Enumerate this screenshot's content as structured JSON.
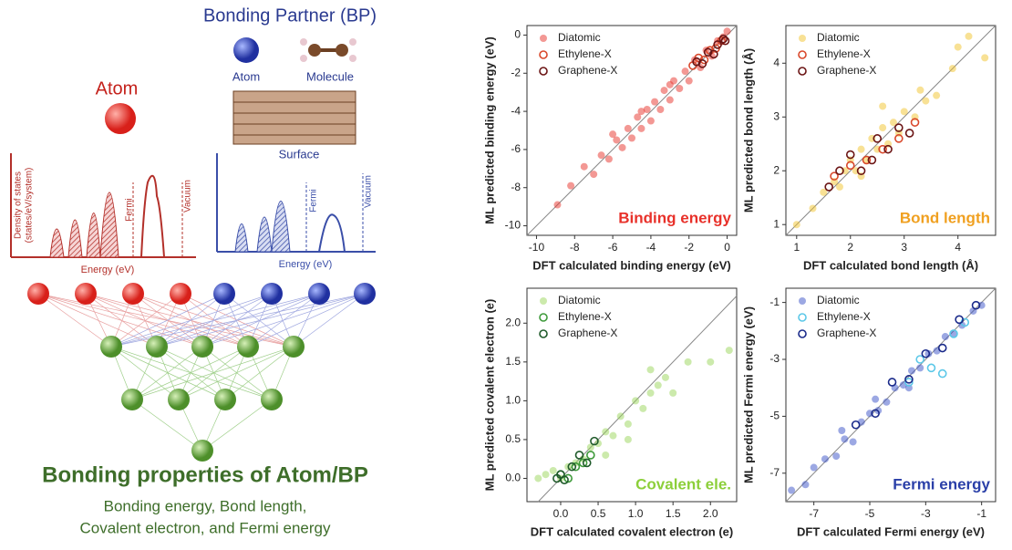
{
  "diagram": {
    "bp_title": "Bonding Partner (BP)",
    "bp_atom": "Atom",
    "bp_molecule": "Molecule",
    "bp_surface": "Surface",
    "atom_title": "Atom",
    "dos_label_1": "Density of states",
    "dos_label_2": "(states/eV/system)",
    "atom_fermi": "Fermi",
    "atom_vacuum": "Vacuum",
    "atom_energy": "Energy (eV)",
    "bp_fermi": "Fermi",
    "bp_vacuum": "Vacuum",
    "bp_energy": "Energy (eV)",
    "output_title": "Bonding properties of Atom/BP",
    "output_line_1": "Bonding energy, Bond length,",
    "output_line_2": "Covalent electron, and Fermi energy"
  },
  "chart_data": [
    {
      "type": "scatter",
      "xlabel": "DFT calculated binding energy (eV)",
      "ylabel": "ML predicted binding energy (eV)",
      "annotation": {
        "text": "Binding energy",
        "color": "#e8312a"
      },
      "xlim": [
        -10.5,
        0.5
      ],
      "ylim": [
        -10.5,
        0.5
      ],
      "xticks": [
        -10,
        -8,
        -6,
        -4,
        -2,
        0
      ],
      "yticks": [
        0,
        -2,
        -4,
        -6,
        -8,
        -10
      ],
      "series": [
        {
          "name": "Diatomic",
          "color": "#e8312a",
          "marker": "filled",
          "x": [
            -8.9,
            -8.2,
            -7.5,
            -7.0,
            -6.6,
            -6.2,
            -5.8,
            -5.5,
            -5.2,
            -5.0,
            -4.7,
            -4.5,
            -4.2,
            -4.0,
            -3.8,
            -3.5,
            -3.3,
            -3.0,
            -2.8,
            -2.5,
            -2.2,
            -2.0,
            -1.7,
            -1.4,
            -1.1,
            -0.8,
            -0.5,
            -0.2,
            0.0,
            -4.5,
            -3.0,
            -6.0
          ],
          "values": [
            -8.9,
            -7.9,
            -6.9,
            -7.3,
            -6.3,
            -6.5,
            -5.5,
            -5.9,
            -4.9,
            -5.4,
            -4.3,
            -4.9,
            -3.9,
            -4.5,
            -3.5,
            -3.9,
            -2.9,
            -3.4,
            -2.4,
            -2.8,
            -1.9,
            -2.4,
            -1.3,
            -1.7,
            -0.8,
            -1.1,
            -0.3,
            -0.1,
            0.2,
            -4.0,
            -2.6,
            -5.2
          ]
        },
        {
          "name": "Ethylene-X",
          "color": "#d9482b",
          "marker": "open",
          "x": [
            -1.8,
            -1.5,
            -1.2,
            -0.9,
            -0.6,
            -0.3
          ],
          "values": [
            -1.6,
            -1.2,
            -1.3,
            -0.8,
            -0.7,
            -0.3
          ]
        },
        {
          "name": "Graphene-X",
          "color": "#6b1414",
          "marker": "open",
          "x": [
            -1.6,
            -1.3,
            -1.0,
            -0.7,
            -0.5,
            -0.2,
            -0.1
          ],
          "values": [
            -1.4,
            -1.5,
            -0.9,
            -1.0,
            -0.5,
            -0.2,
            -0.3
          ]
        }
      ]
    },
    {
      "type": "scatter",
      "xlabel": "DFT calculated bond length (Å)",
      "ylabel": "ML predicted bond length (Å)",
      "annotation": {
        "text": "Bond length",
        "color": "#f0a020"
      },
      "xlim": [
        0.8,
        4.7
      ],
      "ylim": [
        0.8,
        4.7
      ],
      "xticks": [
        1,
        2,
        3,
        4
      ],
      "yticks": [
        1,
        2,
        3,
        4
      ],
      "series": [
        {
          "name": "Diatomic",
          "color": "#f2c42c",
          "marker": "filled",
          "x": [
            1.0,
            1.3,
            1.5,
            1.7,
            1.8,
            1.9,
            2.0,
            2.1,
            2.2,
            2.3,
            2.4,
            2.5,
            2.6,
            2.7,
            2.8,
            2.9,
            3.0,
            3.2,
            3.4,
            3.6,
            3.9,
            4.2,
            4.5,
            2.2,
            2.6,
            3.3,
            4.0
          ],
          "values": [
            1.0,
            1.3,
            1.6,
            1.8,
            1.7,
            2.0,
            2.2,
            2.0,
            2.4,
            2.2,
            2.6,
            2.4,
            2.8,
            2.5,
            2.9,
            2.7,
            3.1,
            3.0,
            3.3,
            3.4,
            3.9,
            4.5,
            4.1,
            1.9,
            3.2,
            3.5,
            4.3
          ]
        },
        {
          "name": "Ethylene-X",
          "color": "#d9482b",
          "marker": "open",
          "x": [
            1.7,
            2.0,
            2.3,
            2.6,
            2.9,
            3.2
          ],
          "values": [
            1.9,
            2.1,
            2.2,
            2.4,
            2.6,
            2.9
          ]
        },
        {
          "name": "Graphene-X",
          "color": "#6b1414",
          "marker": "open",
          "x": [
            1.6,
            1.8,
            2.0,
            2.2,
            2.4,
            2.5,
            2.7,
            2.9,
            3.1
          ],
          "values": [
            1.7,
            2.0,
            2.3,
            2.0,
            2.2,
            2.6,
            2.4,
            2.8,
            2.7
          ]
        }
      ]
    },
    {
      "type": "scatter",
      "xlabel": "DFT calculated covalent electron (e)",
      "ylabel": "ML predicted covalent electron (e)",
      "annotation": {
        "text": "Covalent ele.",
        "color": "#8ccf3a"
      },
      "xlim": [
        -0.45,
        2.35
      ],
      "ylim": [
        -0.3,
        2.45
      ],
      "xticks": [
        {
          "value": 0,
          "label": "0.0"
        },
        0.5,
        {
          "value": 1,
          "label": "1.0"
        },
        1.5,
        {
          "value": 2,
          "label": "2.0"
        }
      ],
      "yticks": [
        {
          "value": 0,
          "label": "0.0"
        },
        0.5,
        {
          "value": 1,
          "label": "1.0"
        },
        1.5,
        {
          "value": 2,
          "label": "2.0"
        }
      ],
      "series": [
        {
          "name": "Diatomic",
          "color": "#9ad65a",
          "marker": "filled",
          "x": [
            -0.3,
            -0.2,
            -0.1,
            0.0,
            0.1,
            0.2,
            0.3,
            0.4,
            0.5,
            0.6,
            0.7,
            0.8,
            0.9,
            1.0,
            1.1,
            1.2,
            1.3,
            1.4,
            1.5,
            1.7,
            2.0,
            2.25,
            0.6,
            0.9,
            1.2
          ],
          "values": [
            0.0,
            0.05,
            0.1,
            0.0,
            0.15,
            0.2,
            0.25,
            0.4,
            0.45,
            0.6,
            0.55,
            0.8,
            0.7,
            1.0,
            0.9,
            1.1,
            1.2,
            1.3,
            1.1,
            1.5,
            1.5,
            1.65,
            0.3,
            0.5,
            1.4
          ]
        },
        {
          "name": "Ethylene-X",
          "color": "#3e9a3a",
          "marker": "open",
          "x": [
            0.0,
            0.1,
            0.2,
            0.3,
            0.4
          ],
          "values": [
            0.05,
            0.0,
            0.15,
            0.2,
            0.3
          ]
        },
        {
          "name": "Graphene-X",
          "color": "#1f5a2a",
          "marker": "open",
          "x": [
            -0.05,
            0.0,
            0.05,
            0.15,
            0.25,
            0.35,
            0.45
          ],
          "values": [
            0.0,
            0.05,
            -0.02,
            0.15,
            0.3,
            0.2,
            0.48
          ]
        }
      ]
    },
    {
      "type": "scatter",
      "xlabel": "DFT calculated Fermi energy (eV)",
      "ylabel": "ML predicted Fermi energy (eV)",
      "annotation": {
        "text": "Fermi energy",
        "color": "#2a3fa8"
      },
      "xlim": [
        -8,
        -0.5
      ],
      "ylim": [
        -8,
        -0.5
      ],
      "xticks": [
        -7,
        -5,
        -3,
        -1
      ],
      "yticks": [
        -1,
        -3,
        -5,
        -7
      ],
      "series": [
        {
          "name": "Diatomic",
          "color": "#3a52c8",
          "marker": "filled",
          "x": [
            -7.8,
            -7.3,
            -7.0,
            -6.6,
            -6.2,
            -5.9,
            -5.6,
            -5.3,
            -5.0,
            -4.7,
            -4.4,
            -4.1,
            -3.8,
            -3.5,
            -3.2,
            -2.9,
            -2.6,
            -2.3,
            -2.0,
            -1.7,
            -1.3,
            -1.0,
            -6.0,
            -4.8,
            -3.6
          ],
          "values": [
            -7.6,
            -7.4,
            -6.8,
            -6.5,
            -6.4,
            -5.8,
            -5.9,
            -5.2,
            -4.9,
            -4.8,
            -4.5,
            -4.0,
            -3.9,
            -3.4,
            -3.3,
            -2.8,
            -2.7,
            -2.2,
            -2.1,
            -1.8,
            -1.3,
            -1.1,
            -5.5,
            -4.4,
            -4.0
          ]
        },
        {
          "name": "Ethylene-X",
          "color": "#5cc8e8",
          "marker": "open",
          "x": [
            -3.6,
            -3.2,
            -2.8,
            -2.4,
            -2.0,
            -1.6
          ],
          "values": [
            -3.8,
            -3.0,
            -3.3,
            -3.5,
            -2.1,
            -1.7
          ]
        },
        {
          "name": "Graphene-X",
          "color": "#1a2a8a",
          "marker": "open",
          "x": [
            -5.5,
            -4.8,
            -4.2,
            -3.6,
            -3.0,
            -2.4,
            -1.8,
            -1.2
          ],
          "values": [
            -5.3,
            -4.9,
            -3.8,
            -3.7,
            -2.8,
            -2.6,
            -1.6,
            -1.1
          ]
        }
      ]
    }
  ]
}
